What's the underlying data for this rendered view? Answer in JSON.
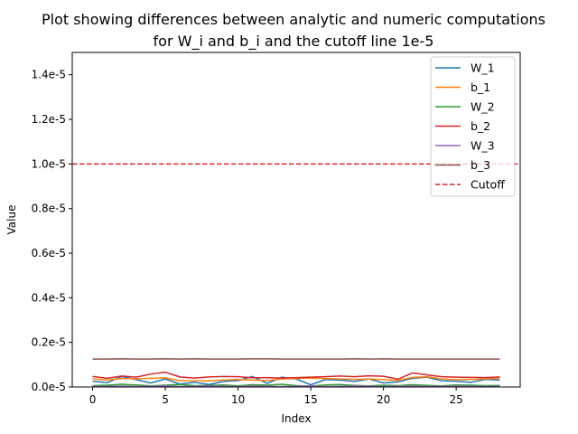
{
  "chart_data": {
    "type": "line",
    "title_line1": "Plot showing differences between analytic and numeric computations",
    "title_line2": "for W_i and b_i and the cutoff line 1e-5",
    "xlabel": "Index",
    "ylabel": "Value",
    "xlim": [
      -1.4,
      29.4
    ],
    "ylim": [
      0,
      1.5e-05
    ],
    "xticks": [
      0,
      5,
      10,
      15,
      20,
      25
    ],
    "yticks": [
      0,
      2e-06,
      4e-06,
      6e-06,
      8e-06,
      1e-05,
      1.2e-05,
      1.4e-05
    ],
    "ytick_labels": [
      "0.0e-5",
      "0.2e-5",
      "0.4e-5",
      "0.6e-5",
      "0.8e-5",
      "1.0e-5",
      "1.2e-5",
      "1.4e-5"
    ],
    "legend_position": "top-right",
    "x": [
      0,
      1,
      2,
      3,
      4,
      5,
      6,
      7,
      8,
      9,
      10,
      11,
      12,
      13,
      14,
      15,
      16,
      17,
      18,
      19,
      20,
      21,
      22,
      23,
      24,
      25,
      26,
      27,
      28
    ],
    "series": [
      {
        "name": "W_1",
        "color": "#1f77b4",
        "values": [
          2.6e-07,
          1.9e-07,
          4.7e-07,
          3.3e-07,
          1.8e-07,
          3.6e-07,
          1.3e-07,
          2.1e-07,
          1.1e-07,
          2.5e-07,
          2.9e-07,
          4.7e-07,
          1.6e-07,
          4.4e-07,
          3.6e-07,
          1e-07,
          3.3e-07,
          3.1e-07,
          2.5e-07,
          3.6e-07,
          1.8e-07,
          2.3e-07,
          3.9e-07,
          4.4e-07,
          2.8e-07,
          2.6e-07,
          2.1e-07,
          3.4e-07,
          3.1e-07
        ]
      },
      {
        "name": "b_1",
        "color": "#ff7f0e",
        "values": [
          3.6e-07,
          3.1e-07,
          3.8e-07,
          3.7e-07,
          3.9e-07,
          4.1e-07,
          2.8e-07,
          2.8e-07,
          2.8e-07,
          3.1e-07,
          3.4e-07,
          3.1e-07,
          2.9e-07,
          3.6e-07,
          3.8e-07,
          4e-07,
          3.8e-07,
          3.6e-07,
          3.4e-07,
          3.6e-07,
          3.3e-07,
          2.9e-07,
          4.3e-07,
          4.6e-07,
          3.6e-07,
          3.3e-07,
          3.4e-07,
          3.6e-07,
          3.9e-07
        ]
      },
      {
        "name": "W_2",
        "color": "#2ca02c",
        "values": [
          6e-08,
          8e-08,
          1.2e-07,
          9e-08,
          5e-08,
          8e-08,
          1.1e-07,
          6e-08,
          7e-08,
          9e-08,
          5e-08,
          1e-07,
          8e-08,
          1.2e-07,
          6e-08,
          4e-08,
          9e-08,
          1.1e-07,
          7e-08,
          5e-08,
          8e-08,
          6e-08,
          1e-07,
          7e-08,
          5e-08,
          9e-08,
          8e-08,
          6e-08,
          7e-08
        ]
      },
      {
        "name": "b_2",
        "color": "#d62728",
        "values": [
          4.7e-07,
          3.9e-07,
          4.9e-07,
          4.4e-07,
          5.8e-07,
          6.6e-07,
          4.5e-07,
          4e-07,
          4.5e-07,
          4.7e-07,
          4.6e-07,
          4.1e-07,
          4.2e-07,
          4e-07,
          4.2e-07,
          4.4e-07,
          4.6e-07,
          4.9e-07,
          4.6e-07,
          5e-07,
          4.8e-07,
          3.5e-07,
          6.3e-07,
          5.4e-07,
          4.6e-07,
          4.4e-07,
          4.3e-07,
          4.2e-07,
          4.5e-07
        ]
      },
      {
        "name": "W_3",
        "color": "#9467bd",
        "values": [
          2e-08,
          3e-08,
          4e-08,
          2e-08,
          3e-08,
          5e-08,
          2e-08,
          3e-08,
          4e-08,
          3e-08,
          2e-08,
          4e-08,
          3e-08,
          2e-08,
          3e-08,
          4e-08,
          2e-08,
          3e-08,
          5e-08,
          3e-08,
          2e-08,
          3e-08,
          4e-08,
          2e-08,
          3e-08,
          4e-08,
          3e-08,
          2e-08,
          3e-08
        ]
      },
      {
        "name": "b_3",
        "color": "#8c564b",
        "values": [
          1.25e-06,
          1.25e-06,
          1.26e-06,
          1.25e-06,
          1.25e-06,
          1.26e-06,
          1.25e-06,
          1.26e-06,
          1.25e-06,
          1.25e-06,
          1.25e-06,
          1.26e-06,
          1.26e-06,
          1.25e-06,
          1.25e-06,
          1.25e-06,
          1.25e-06,
          1.25e-06,
          1.26e-06,
          1.25e-06,
          1.26e-06,
          1.25e-06,
          1.25e-06,
          1.25e-06,
          1.25e-06,
          1.25e-06,
          1.25e-06,
          1.25e-06,
          1.25e-06
        ]
      }
    ],
    "cutoff": {
      "name": "Cutoff",
      "value": 1e-05,
      "color": "#d62728",
      "style": "dashed"
    }
  }
}
